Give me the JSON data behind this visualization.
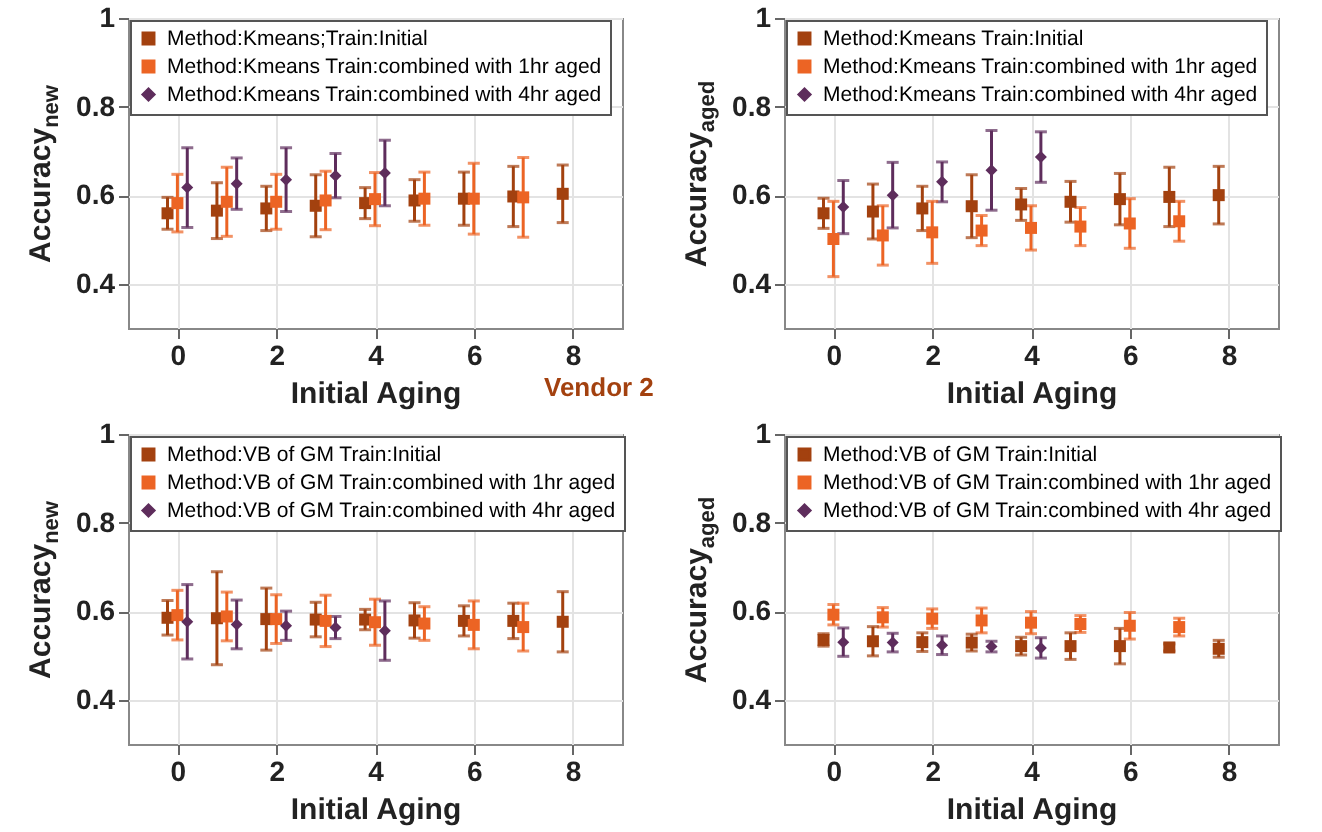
{
  "chart_data": [
    {
      "type": "scatter",
      "ylabel": "Accuracy$_{new}$",
      "xlabel": "Initial Aging",
      "xlim": [
        -1,
        9
      ],
      "xticks": [
        0,
        2,
        4,
        6,
        8
      ],
      "ylim": [
        0.3,
        1
      ],
      "yticks": [
        0.4,
        0.6,
        0.8,
        1
      ],
      "grid": true,
      "legend": "top left",
      "marker": "square",
      "annotations": [
        "Vendor 2"
      ],
      "series": [
        {
          "name": "Method:Kmeans;Train:Initial",
          "color": "#a3410f",
          "x": [
            -0.2,
            0.8,
            1.8,
            2.8,
            3.8,
            4.8,
            5.8,
            6.8,
            7.8
          ],
          "values": [
            0.559,
            0.565,
            0.57,
            0.576,
            0.582,
            0.588,
            0.592,
            0.597,
            0.603
          ],
          "errors": [
            0.036,
            0.063,
            0.05,
            0.07,
            0.035,
            0.047,
            0.06,
            0.068,
            0.065
          ]
        },
        {
          "name": "Method:Kmeans Train:combined with 1hr aged",
          "color": "#ec6424",
          "x": [
            0,
            1,
            2,
            3,
            4,
            5,
            6,
            7
          ],
          "values": [
            0.582,
            0.585,
            0.585,
            0.588,
            0.591,
            0.592,
            0.592,
            0.595
          ],
          "errors": [
            0.065,
            0.078,
            0.062,
            0.066,
            0.06,
            0.06,
            0.08,
            0.09
          ]
        },
        {
          "name": "Method:Kmeans Train:combined with 4hr aged",
          "color": "#5e2d5c",
          "marker": "diamond",
          "x": [
            0.2,
            1.2,
            2.2,
            3.2,
            4.2
          ],
          "values": [
            0.617,
            0.626,
            0.635,
            0.644,
            0.65
          ],
          "errors": [
            0.09,
            0.058,
            0.072,
            0.05,
            0.074
          ]
        }
      ]
    },
    {
      "type": "scatter",
      "ylabel": "Accuracy$_{aged}$",
      "xlabel": "Initial Aging",
      "xlim": [
        -1,
        9
      ],
      "xticks": [
        0,
        2,
        4,
        6,
        8
      ],
      "ylim": [
        0.3,
        1
      ],
      "yticks": [
        0.4,
        0.6,
        0.8,
        1
      ],
      "grid": true,
      "legend": "top left",
      "marker": "square",
      "series": [
        {
          "name": "Method:Kmeans Train:Initial",
          "color": "#a3410f",
          "x": [
            -0.2,
            0.8,
            1.8,
            2.8,
            3.8,
            4.8,
            5.8,
            6.8,
            7.8
          ],
          "values": [
            0.559,
            0.563,
            0.57,
            0.575,
            0.579,
            0.585,
            0.591,
            0.596,
            0.6
          ],
          "errors": [
            0.034,
            0.062,
            0.05,
            0.071,
            0.036,
            0.046,
            0.058,
            0.067,
            0.065
          ]
        },
        {
          "name": "Method:Kmeans Train:combined with 1hr aged",
          "color": "#ec6424",
          "x": [
            0,
            1,
            2,
            3,
            4,
            5,
            6,
            7
          ],
          "values": [
            0.501,
            0.509,
            0.516,
            0.52,
            0.526,
            0.529,
            0.536,
            0.541
          ],
          "errors": [
            0.085,
            0.067,
            0.07,
            0.034,
            0.05,
            0.043,
            0.056,
            0.045
          ]
        },
        {
          "name": "Method:Kmeans Train:combined with 4hr aged",
          "color": "#5e2d5c",
          "marker": "diamond",
          "x": [
            0.2,
            1.2,
            2.2,
            3.2,
            4.2
          ],
          "values": [
            0.573,
            0.6,
            0.63,
            0.656,
            0.686
          ],
          "errors": [
            0.06,
            0.074,
            0.045,
            0.09,
            0.057
          ]
        }
      ]
    },
    {
      "type": "scatter",
      "ylabel": "Accuracy$_{new}$",
      "xlabel": "Initial Aging",
      "xlim": [
        -1,
        9
      ],
      "xticks": [
        0,
        2,
        4,
        6,
        8
      ],
      "ylim": [
        0.3,
        1
      ],
      "yticks": [
        0.4,
        0.6,
        0.8,
        1
      ],
      "grid": true,
      "legend": "top left",
      "marker": "square",
      "series": [
        {
          "name": "Method:VB of GM Train:Initial",
          "color": "#a3410f",
          "x": [
            -0.2,
            0.8,
            1.8,
            2.8,
            3.8,
            4.8,
            5.8,
            6.8,
            7.8
          ],
          "values": [
            0.585,
            0.584,
            0.582,
            0.581,
            0.581,
            0.579,
            0.578,
            0.578,
            0.576
          ],
          "errors": [
            0.039,
            0.105,
            0.07,
            0.039,
            0.023,
            0.04,
            0.034,
            0.04,
            0.068
          ]
        },
        {
          "name": "Method:VB of GM Train:combined with 1hr aged",
          "color": "#ec6424",
          "x": [
            0,
            1,
            2,
            3,
            4,
            5,
            6,
            7
          ],
          "values": [
            0.591,
            0.588,
            0.582,
            0.578,
            0.575,
            0.572,
            0.569,
            0.564
          ],
          "errors": [
            0.056,
            0.055,
            0.055,
            0.058,
            0.052,
            0.038,
            0.054,
            0.054
          ]
        },
        {
          "name": "Method:VB of GM Train:combined with 4hr aged",
          "color": "#5e2d5c",
          "marker": "diamond",
          "x": [
            0.2,
            1.2,
            2.2,
            3.2,
            4.2
          ],
          "values": [
            0.576,
            0.57,
            0.567,
            0.563,
            0.556
          ],
          "errors": [
            0.084,
            0.055,
            0.033,
            0.025,
            0.067
          ]
        }
      ]
    },
    {
      "type": "scatter",
      "ylabel": "Accuracy$_{aged}$",
      "xlabel": "Initial Aging",
      "xlim": [
        -1,
        9
      ],
      "xticks": [
        0,
        2,
        4,
        6,
        8
      ],
      "ylim": [
        0.3,
        1
      ],
      "yticks": [
        0.4,
        0.6,
        0.8,
        1
      ],
      "grid": true,
      "legend": "top left",
      "marker": "square",
      "series": [
        {
          "name": "Method:VB of GM Train:Initial",
          "color": "#a3410f",
          "x": [
            -0.2,
            0.8,
            1.8,
            2.8,
            3.8,
            4.8,
            5.8,
            6.8,
            7.8
          ],
          "values": [
            0.535,
            0.532,
            0.53,
            0.529,
            0.521,
            0.521,
            0.521,
            0.518,
            0.515
          ],
          "errors": [
            0.014,
            0.033,
            0.021,
            0.019,
            0.02,
            0.03,
            0.04,
            0.008,
            0.019
          ]
        },
        {
          "name": "Method:VB of GM Train:combined with 1hr aged",
          "color": "#ec6424",
          "x": [
            0,
            1,
            2,
            3,
            4,
            5,
            6,
            7
          ],
          "values": [
            0.592,
            0.586,
            0.583,
            0.579,
            0.574,
            0.571,
            0.567,
            0.564
          ],
          "errors": [
            0.023,
            0.022,
            0.022,
            0.028,
            0.025,
            0.019,
            0.03,
            0.02
          ]
        },
        {
          "name": "Method:VB of GM Train:combined with 4hr aged",
          "color": "#5e2d5c",
          "marker": "diamond",
          "x": [
            0.2,
            1.2,
            2.2,
            3.2,
            4.2
          ],
          "values": [
            0.53,
            0.529,
            0.523,
            0.52,
            0.517
          ],
          "errors": [
            0.032,
            0.021,
            0.021,
            0.012,
            0.023
          ]
        }
      ]
    }
  ]
}
